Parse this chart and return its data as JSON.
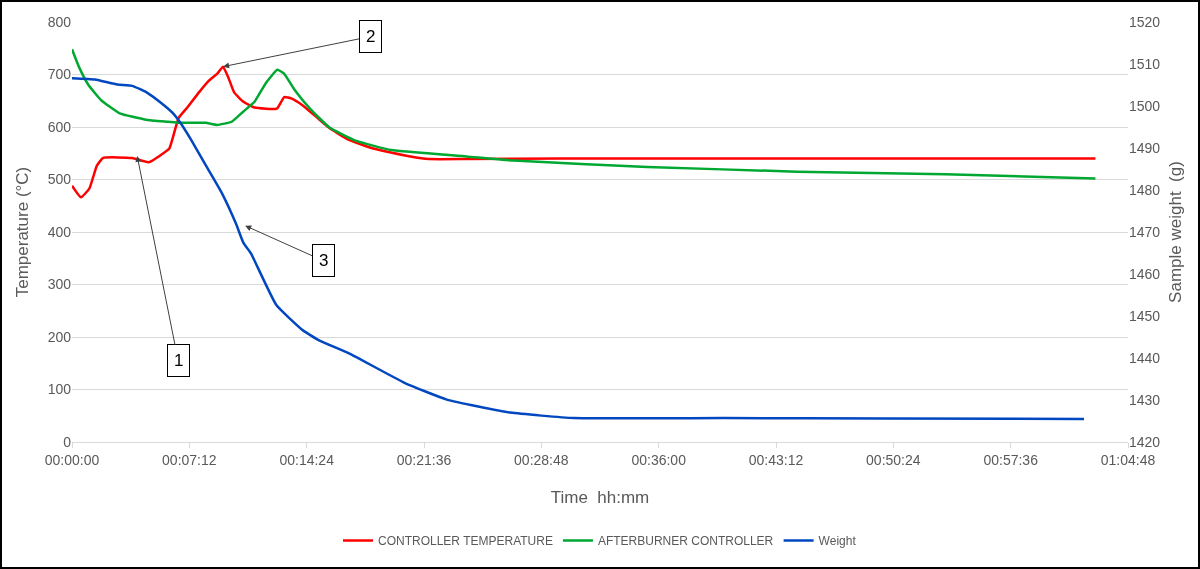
{
  "chart_data": {
    "type": "line",
    "xlabel": "Time  hh:mm",
    "ylabel": "Temperature (°C)",
    "y2label": "Sample weight  (g)",
    "xlim": [
      0,
      64.8
    ],
    "xticks": [
      {
        "value": 0,
        "label": "00:00:00"
      },
      {
        "value": 7.2,
        "label": "00:07:12"
      },
      {
        "value": 14.4,
        "label": "00:14:24"
      },
      {
        "value": 21.6,
        "label": "00:21:36"
      },
      {
        "value": 28.8,
        "label": "00:28:48"
      },
      {
        "value": 36,
        "label": "00:36:00"
      },
      {
        "value": 43.2,
        "label": "00:43:12"
      },
      {
        "value": 50.4,
        "label": "00:50:24"
      },
      {
        "value": 57.6,
        "label": "00:57:36"
      },
      {
        "value": 64.8,
        "label": "01:04:48"
      }
    ],
    "ylim": [
      0,
      800
    ],
    "yticks": [
      0,
      100,
      200,
      300,
      400,
      500,
      600,
      700,
      800
    ],
    "y2lim": [
      1420,
      1520
    ],
    "y2ticks": [
      1420,
      1430,
      1440,
      1450,
      1460,
      1470,
      1480,
      1490,
      1500,
      1510,
      1520
    ],
    "grid": "y",
    "legend": "bottom",
    "marker": "none",
    "line_style": "solid",
    "series": [
      {
        "name": "CONTROLLER TEMPERATURE",
        "color": "#ff0000",
        "x": [
          0,
          0.55,
          1.07,
          1.52,
          1.91,
          3.69,
          4.71,
          5.97,
          6.19,
          6.54,
          7.1,
          7.79,
          8.36,
          8.93,
          9.27,
          9.61,
          9.95,
          10.52,
          11.2,
          12.57,
          13.02,
          13.48,
          14.16,
          15.07,
          15.76,
          16.89,
          18.49,
          20.76,
          21.9,
          24.2,
          30,
          40,
          50,
          62.8
        ],
        "values": [
          488,
          466,
          483,
          526,
          541,
          541,
          533,
          559,
          580,
          617,
          638,
          666,
          687,
          702,
          715,
          693,
          666,
          648,
          637,
          635,
          657,
          654,
          641,
          617,
          599,
          577,
          559,
          544,
          539,
          539,
          540,
          540,
          540,
          540
        ]
      },
      {
        "name": "AFTERBURNER CONTROLLER",
        "color": "#00a832",
        "x": [
          0,
          0.42,
          0.99,
          1.79,
          2.93,
          4.53,
          5.9,
          6.58,
          8.2,
          8.9,
          9.8,
          10.5,
          11.2,
          11.9,
          12.6,
          13.0,
          13.7,
          14.6,
          15.8,
          17.4,
          19.6,
          24.2,
          27.1,
          35.3,
          44.5,
          53.6,
          62.8
        ],
        "values": [
          748,
          715,
          681,
          651,
          626,
          614,
          610,
          608,
          608,
          604,
          610,
          629,
          648,
          684,
          709,
          702,
          669,
          635,
          599,
          574,
          556,
          544,
          536,
          524,
          515,
          510,
          502
        ]
      },
      {
        "name": "Weight",
        "color": "#0047c0",
        "axis": "y2",
        "x": [
          0,
          1.41,
          2.78,
          3.69,
          4.6,
          5.51,
          6.19,
          6.65,
          7.33,
          8.24,
          9.15,
          10.06,
          10.52,
          10.98,
          12.54,
          14.1,
          15.16,
          17,
          20.4,
          23,
          26.9,
          30.8,
          40,
          50,
          62.1
        ],
        "values": [
          1506.6,
          1506.3,
          1505.1,
          1504.8,
          1503.2,
          1500.6,
          1498.3,
          1496,
          1491.8,
          1485.7,
          1479.6,
          1472,
          1467.4,
          1464.9,
          1452.6,
          1446.8,
          1444.2,
          1441.1,
          1434.1,
          1430.1,
          1427,
          1425.7,
          1425.7,
          1425.6,
          1425.5
        ]
      }
    ],
    "annotations": [
      {
        "text": "1",
        "x": 4.0,
        "y": 545
      },
      {
        "text": "2",
        "x": 9.27,
        "y": 715
      },
      "3"
    ]
  }
}
